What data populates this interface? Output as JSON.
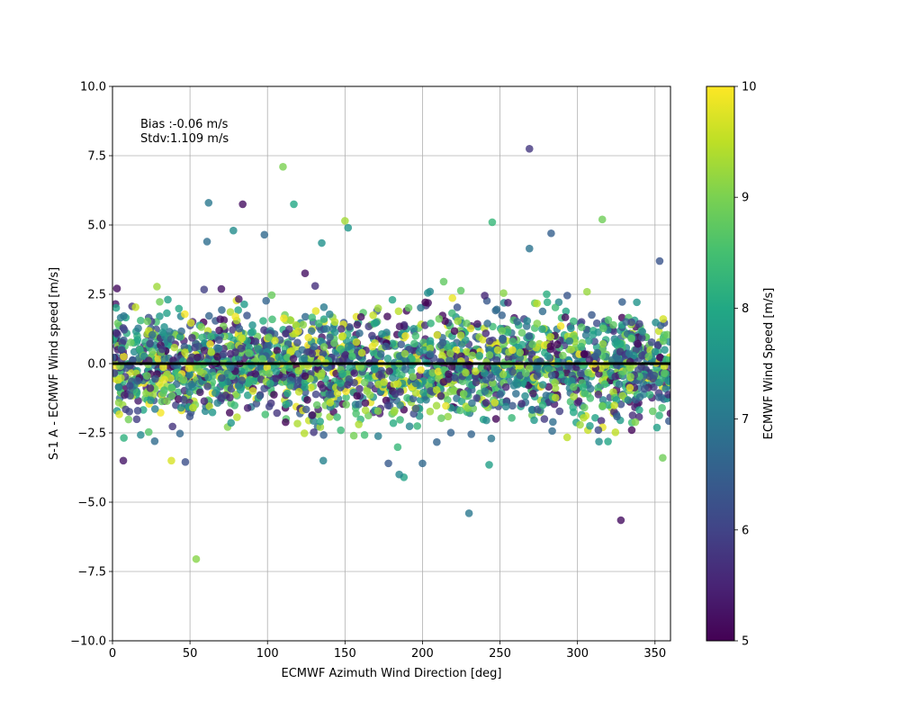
{
  "chart_data": {
    "type": "scatter",
    "xlabel": "ECMWF Azimuth Wind Direction [deg]",
    "ylabel": "S-1 A - ECMWF Wind speed [m/s]",
    "xlim": [
      0,
      360
    ],
    "ylim": [
      -10,
      10
    ],
    "x_ticks": [
      0,
      50,
      100,
      150,
      200,
      250,
      300,
      350
    ],
    "y_ticks": [
      -10.0,
      -7.5,
      -5.0,
      -2.5,
      0.0,
      2.5,
      5.0,
      7.5,
      10.0
    ],
    "x_tick_labels": [
      "0",
      "50",
      "100",
      "150",
      "200",
      "250",
      "300",
      "350"
    ],
    "y_tick_labels": [
      "−10.0",
      "−7.5",
      "−5.0",
      "−2.5",
      "0.0",
      "2.5",
      "5.0",
      "7.5",
      "10.0"
    ],
    "grid": true,
    "reference_line_y": 0,
    "annotation": {
      "bias": "Bias :-0.06 m/s",
      "stdv": "Stdv:1.109 m/s"
    },
    "colorbar": {
      "label": "ECMWF Wind Speed [m/s]",
      "min": 5,
      "max": 10,
      "ticks": [
        5,
        6,
        7,
        8,
        9,
        10
      ],
      "tick_labels": [
        "5",
        "6",
        "7",
        "8",
        "9",
        "10"
      ],
      "colormap": "viridis"
    },
    "outlier_points": [
      {
        "x": 269,
        "y": 7.75,
        "c": 5.8
      },
      {
        "x": 110,
        "y": 7.1,
        "c": 9.0
      },
      {
        "x": 62,
        "y": 5.8,
        "c": 7.0
      },
      {
        "x": 84,
        "y": 5.75,
        "c": 5.2
      },
      {
        "x": 117,
        "y": 5.75,
        "c": 8.0
      },
      {
        "x": 150,
        "y": 5.15,
        "c": 9.3
      },
      {
        "x": 245,
        "y": 5.1,
        "c": 8.3
      },
      {
        "x": 316,
        "y": 5.2,
        "c": 8.9
      },
      {
        "x": 152,
        "y": 4.9,
        "c": 7.6
      },
      {
        "x": 61,
        "y": 4.4,
        "c": 6.8
      },
      {
        "x": 78,
        "y": 4.8,
        "c": 7.4
      },
      {
        "x": 98,
        "y": 4.65,
        "c": 6.7
      },
      {
        "x": 135,
        "y": 4.35,
        "c": 7.5
      },
      {
        "x": 283,
        "y": 4.7,
        "c": 6.5
      },
      {
        "x": 269,
        "y": 4.15,
        "c": 6.9
      },
      {
        "x": 353,
        "y": 3.7,
        "c": 6.3
      },
      {
        "x": 54,
        "y": -7.05,
        "c": 9.1
      },
      {
        "x": 230,
        "y": -5.4,
        "c": 7.0
      },
      {
        "x": 328,
        "y": -5.65,
        "c": 5.2
      },
      {
        "x": 243,
        "y": -3.65,
        "c": 7.8
      },
      {
        "x": 188,
        "y": -4.1,
        "c": 7.9
      },
      {
        "x": 185,
        "y": -4.0,
        "c": 7.3
      },
      {
        "x": 178,
        "y": -3.6,
        "c": 6.4
      },
      {
        "x": 200,
        "y": -3.6,
        "c": 6.7
      },
      {
        "x": 136,
        "y": -3.5,
        "c": 7.2
      },
      {
        "x": 38,
        "y": -3.5,
        "c": 9.7
      },
      {
        "x": 355,
        "y": -3.4,
        "c": 8.9
      },
      {
        "x": 7,
        "y": -3.5,
        "c": 5.3
      },
      {
        "x": 47,
        "y": -3.55,
        "c": 6.2
      }
    ],
    "bulk_cloud": {
      "points": 2500,
      "y_mean": -0.06,
      "y_std": 1.0,
      "x_range": [
        0,
        360
      ],
      "color_range": [
        5,
        10
      ]
    }
  }
}
